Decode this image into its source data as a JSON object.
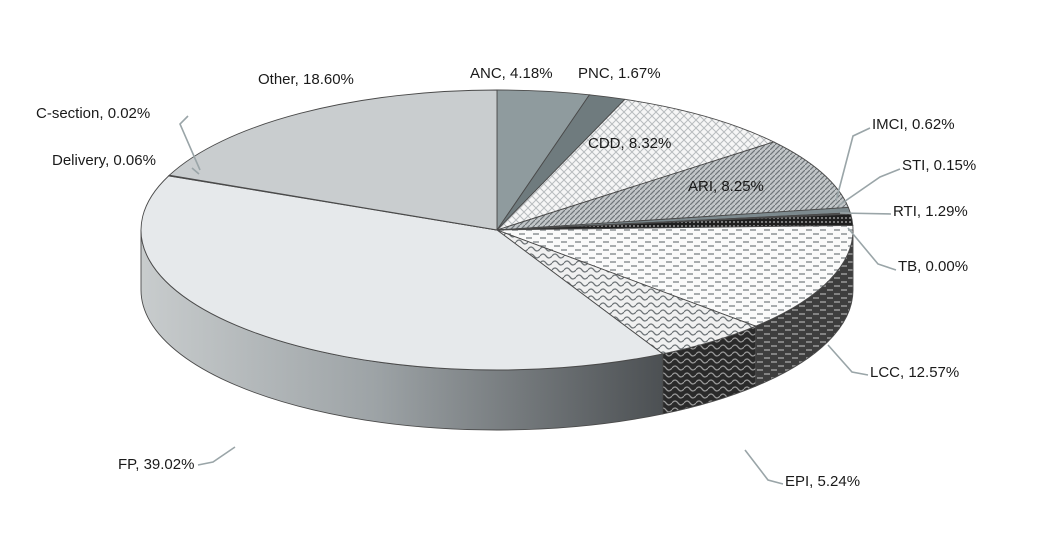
{
  "chart_data": {
    "type": "pie",
    "style": "3d-exploded-less",
    "title": "",
    "slices": [
      {
        "name": "ANC",
        "value": 4.18,
        "label": "ANC, 4.18%",
        "color": "#8f9b9e",
        "pattern": "solid"
      },
      {
        "name": "PNC",
        "value": 1.67,
        "label": "PNC, 1.67%",
        "color": "#6f7b7e",
        "pattern": "solid"
      },
      {
        "name": "CDD",
        "value": 8.32,
        "label": "CDD, 8.32%",
        "color": "#eeeeee",
        "pattern": "crosshatch"
      },
      {
        "name": "ARI",
        "value": 8.25,
        "label": "ARI, 8.25%",
        "color": "#a7adb0",
        "pattern": "diagonal"
      },
      {
        "name": "IMCI",
        "value": 0.62,
        "label": "IMCI, 0.62%",
        "color": "#7d8a8e",
        "pattern": "solid"
      },
      {
        "name": "STI",
        "value": 0.15,
        "label": "STI, 0.15%",
        "color": "#555555",
        "pattern": "solid"
      },
      {
        "name": "RTI",
        "value": 1.29,
        "label": "RTI, 1.29%",
        "color": "#2a2a2a",
        "pattern": "dots"
      },
      {
        "name": "TB",
        "value": 0.0,
        "label": "TB, 0.00%",
        "color": "#444444",
        "pattern": "solid"
      },
      {
        "name": "LCC",
        "value": 12.57,
        "label": "LCC, 12.57%",
        "color": "#f4f4f4",
        "pattern": "dashes"
      },
      {
        "name": "EPI",
        "value": 5.24,
        "label": "EPI, 5.24%",
        "color": "#dcdcdc",
        "pattern": "waves"
      },
      {
        "name": "FP",
        "value": 39.02,
        "label": "FP, 39.02%",
        "color": "#e6e9eb",
        "pattern": "solid"
      },
      {
        "name": "Delivery",
        "value": 0.06,
        "label": "Delivery, 0.06%",
        "color": "#bfc6c8",
        "pattern": "solid"
      },
      {
        "name": "C-section",
        "value": 0.02,
        "label": "C-section, 0.02%",
        "color": "#9aa3a6",
        "pattern": "solid"
      },
      {
        "name": "Other",
        "value": 18.6,
        "label": "Other, 18.60%",
        "color": "#c9cdcf",
        "pattern": "solid"
      }
    ],
    "legend": "none",
    "data_labels": "outside-with-leaders"
  }
}
